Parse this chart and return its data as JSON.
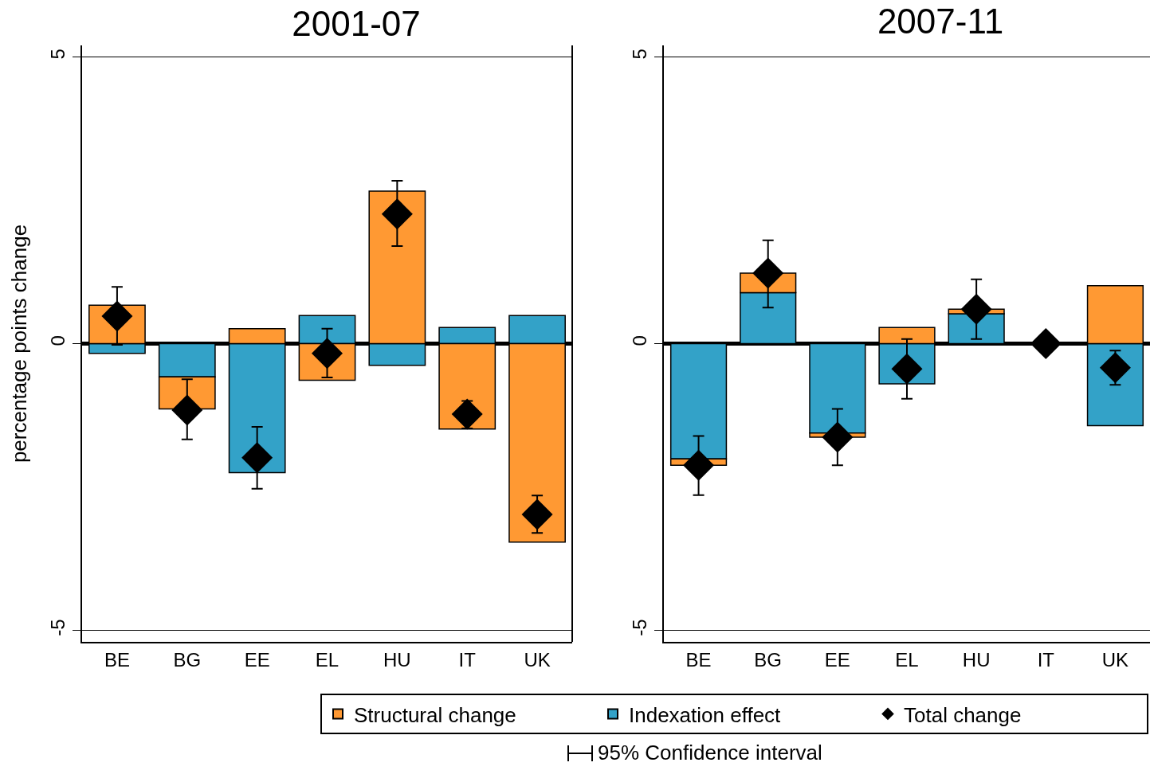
{
  "chart_data": [
    {
      "type": "bar",
      "stacked": true,
      "title": "2001-07",
      "ylabel": "percentage points change",
      "categories": [
        "BE",
        "BG",
        "EE",
        "EL",
        "HU",
        "IT",
        "UK"
      ],
      "series": [
        {
          "name": "Indexation effect",
          "color": "#33a2c8",
          "values": [
            -0.17,
            -0.58,
            -2.25,
            0.49,
            -0.38,
            0.28,
            0.49
          ]
        },
        {
          "name": "Structural change",
          "color": "#ff9933",
          "values": [
            0.67,
            -0.56,
            0.26,
            -0.64,
            2.66,
            -1.49,
            -3.46
          ]
        },
        {
          "name": "Total change",
          "type": "scatter",
          "marker": "diamond",
          "color": "#000000",
          "values": [
            0.48,
            -1.16,
            -1.99,
            -0.17,
            2.26,
            -1.23,
            -2.98
          ],
          "errors": [
            [
              -0.02,
              0.99
            ],
            [
              -1.67,
              -0.62
            ],
            [
              -2.53,
              -1.45
            ],
            [
              -0.59,
              0.26
            ],
            [
              1.7,
              2.84
            ],
            [
              -1.48,
              -1.0
            ],
            [
              -3.3,
              -2.65
            ]
          ]
        }
      ],
      "ylim": [
        -5.2,
        5.2
      ],
      "yticks": [
        -5,
        0,
        5
      ],
      "grid": "y",
      "legend": "bottom",
      "annotations": [
        "95% Confidence interval"
      ]
    },
    {
      "type": "bar",
      "stacked": true,
      "title": "2007-11",
      "categories": [
        "BE",
        "BG",
        "EE",
        "EL",
        "HU",
        "IT",
        "UK"
      ],
      "series": [
        {
          "color": "#33a2c8",
          "values": [
            -2.01,
            0.89,
            -1.56,
            -0.7,
            0.52,
            0,
            -1.43
          ]
        },
        {
          "color": "#ff9933",
          "values": [
            -0.11,
            0.34,
            -0.07,
            0.28,
            0.08,
            0,
            1.01
          ]
        },
        {
          "type": "scatter",
          "marker": "diamond",
          "color": "#000000",
          "values": [
            -2.12,
            1.23,
            -1.63,
            -0.44,
            0.6,
            0,
            -0.42
          ],
          "errors": [
            [
              -2.64,
              -1.61
            ],
            [
              0.63,
              1.8
            ],
            [
              -2.12,
              -1.14
            ],
            [
              -0.96,
              0.08
            ],
            [
              0.08,
              1.12
            ],
            [
              -0.03,
              0.03
            ],
            [
              -0.72,
              -0.12
            ]
          ]
        }
      ],
      "ylim": [
        -5.2,
        5.2
      ],
      "yticks": [
        -5,
        0,
        5
      ],
      "grid": "y"
    }
  ]
}
